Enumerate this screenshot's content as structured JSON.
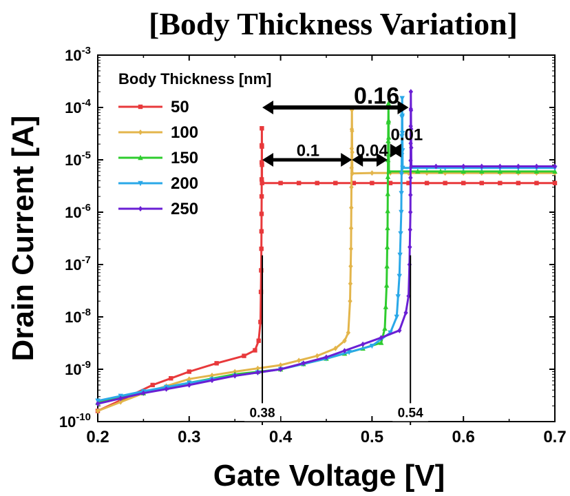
{
  "chart_data": {
    "type": "line",
    "title": "[Body Thickness Variation]",
    "xlabel": "Gate Voltage [V]",
    "ylabel": "Drain Current [A]",
    "xlim": [
      0.2,
      0.7
    ],
    "ylim_exponent": [
      -10,
      -3
    ],
    "y_scale": "log",
    "x_ticks": [
      "0.2",
      "0.3",
      "0.4",
      "0.5",
      "0.6",
      "0.7"
    ],
    "y_ticks": [
      {
        "base": "10",
        "exp": "-10"
      },
      {
        "base": "10",
        "exp": "-9"
      },
      {
        "base": "10",
        "exp": "-8"
      },
      {
        "base": "10",
        "exp": "-7"
      },
      {
        "base": "10",
        "exp": "-6"
      },
      {
        "base": "10",
        "exp": "-5"
      },
      {
        "base": "10",
        "exp": "-4"
      },
      {
        "base": "10",
        "exp": "-3"
      }
    ],
    "legend_title": "Body Thickness [nm]",
    "legend_position": "top-left",
    "series": [
      {
        "name": "50",
        "color": "#e8393b",
        "marker": "square",
        "points": [
          [
            0.2,
            1.6e-10
          ],
          [
            0.23,
            2.8e-10
          ],
          [
            0.26,
            5e-10
          ],
          [
            0.3,
            9e-10
          ],
          [
            0.33,
            1.3e-09
          ],
          [
            0.36,
            1.8e-09
          ],
          [
            0.372,
            2.3e-09
          ],
          [
            0.376,
            3.5e-09
          ],
          [
            0.378,
            8e-09
          ],
          [
            0.3785,
            3e-08
          ],
          [
            0.379,
            2e-07
          ],
          [
            0.3793,
            2e-06
          ],
          [
            0.3795,
            4e-05
          ],
          [
            0.3797,
            3.6e-06
          ],
          [
            0.4,
            3.6e-06
          ],
          [
            0.5,
            3.6e-06
          ],
          [
            0.6,
            3.6e-06
          ],
          [
            0.7,
            3.6e-06
          ]
        ]
      },
      {
        "name": "100",
        "color": "#e3b54b",
        "marker": "diamond",
        "points": [
          [
            0.2,
            1.6e-10
          ],
          [
            0.25,
            3.5e-10
          ],
          [
            0.3,
            6.5e-10
          ],
          [
            0.35,
            9e-10
          ],
          [
            0.4,
            1.2e-09
          ],
          [
            0.44,
            1.8e-09
          ],
          [
            0.46,
            2.5e-09
          ],
          [
            0.47,
            3.5e-09
          ],
          [
            0.474,
            5e-09
          ],
          [
            0.476,
            2e-08
          ],
          [
            0.477,
            2e-07
          ],
          [
            0.4775,
            3e-06
          ],
          [
            0.478,
            9e-05
          ],
          [
            0.4785,
            5.5e-06
          ],
          [
            0.5,
            5.6e-06
          ],
          [
            0.6,
            5.6e-06
          ],
          [
            0.7,
            5.6e-06
          ]
        ]
      },
      {
        "name": "150",
        "color": "#2ecc2e",
        "marker": "triangle",
        "points": [
          [
            0.2,
            2.3e-10
          ],
          [
            0.25,
            3.5e-10
          ],
          [
            0.3,
            5.5e-10
          ],
          [
            0.35,
            8e-10
          ],
          [
            0.4,
            1e-09
          ],
          [
            0.45,
            1.6e-09
          ],
          [
            0.49,
            2.5e-09
          ],
          [
            0.51,
            3.2e-09
          ],
          [
            0.514,
            6e-09
          ],
          [
            0.516,
            4e-08
          ],
          [
            0.517,
            5e-07
          ],
          [
            0.5175,
            1e-05
          ],
          [
            0.518,
            0.00012
          ],
          [
            0.5185,
            6e-06
          ],
          [
            0.55,
            6e-06
          ],
          [
            0.6,
            6e-06
          ],
          [
            0.7,
            6e-06
          ]
        ]
      },
      {
        "name": "200",
        "color": "#2aa8e8",
        "marker": "triangle-down",
        "points": [
          [
            0.2,
            2.5e-10
          ],
          [
            0.25,
            3.8e-10
          ],
          [
            0.3,
            5.5e-10
          ],
          [
            0.35,
            7.5e-10
          ],
          [
            0.4,
            1e-09
          ],
          [
            0.45,
            1.6e-09
          ],
          [
            0.5,
            2.8e-09
          ],
          [
            0.52,
            5e-09
          ],
          [
            0.527,
            1e-08
          ],
          [
            0.53,
            6e-08
          ],
          [
            0.532,
            1e-06
          ],
          [
            0.533,
            0.00015
          ],
          [
            0.5335,
            7e-06
          ],
          [
            0.56,
            7e-06
          ],
          [
            0.6,
            7e-06
          ],
          [
            0.7,
            7e-06
          ]
        ]
      },
      {
        "name": "250",
        "color": "#6a1fd4",
        "marker": "diamond",
        "points": [
          [
            0.2,
            2.2e-10
          ],
          [
            0.25,
            3.5e-10
          ],
          [
            0.3,
            5e-10
          ],
          [
            0.35,
            7.5e-10
          ],
          [
            0.4,
            1e-09
          ],
          [
            0.45,
            1.7e-09
          ],
          [
            0.49,
            3e-09
          ],
          [
            0.51,
            4e-09
          ],
          [
            0.53,
            5.5e-09
          ],
          [
            0.537,
            1.2e-08
          ],
          [
            0.54,
            2.5e-08
          ],
          [
            0.541,
            1e-07
          ],
          [
            0.542,
            1e-06
          ],
          [
            0.5425,
            0.0002
          ],
          [
            0.543,
            7.5e-06
          ],
          [
            0.57,
            7.5e-06
          ],
          [
            0.6,
            7.5e-06
          ],
          [
            0.7,
            7.5e-06
          ]
        ]
      }
    ],
    "annotations": [
      {
        "text": "0.16",
        "kind": "arrow-label",
        "x1": 0.38,
        "x2": 0.54,
        "y": 0.0001,
        "label_x": 0.505,
        "label_y": 0.00015,
        "size": "large"
      },
      {
        "text": "0.1",
        "kind": "arrow-label",
        "x1": 0.38,
        "x2": 0.478,
        "y": 1e-05,
        "label_x": 0.43,
        "label_y": 1.5e-05,
        "size": "medium"
      },
      {
        "text": "0.04",
        "kind": "arrow-label",
        "x1": 0.478,
        "x2": 0.517,
        "y": 1e-05,
        "label_x": 0.5,
        "label_y": 1.5e-05,
        "size": "medium"
      },
      {
        "text": "0.01",
        "kind": "arrow-label",
        "x1": 0.52,
        "x2": 0.532,
        "y": 1.5e-05,
        "label_x": 0.538,
        "label_y": 3e-05,
        "size": "medium"
      },
      {
        "text": "0.38",
        "kind": "vline",
        "x": 0.38,
        "y_top": 1.5e-07,
        "label_y": 1.3e-10
      },
      {
        "text": "0.54",
        "kind": "vline",
        "x": 0.542,
        "y_top": 1.5e-07,
        "label_y": 1.3e-10
      }
    ]
  }
}
